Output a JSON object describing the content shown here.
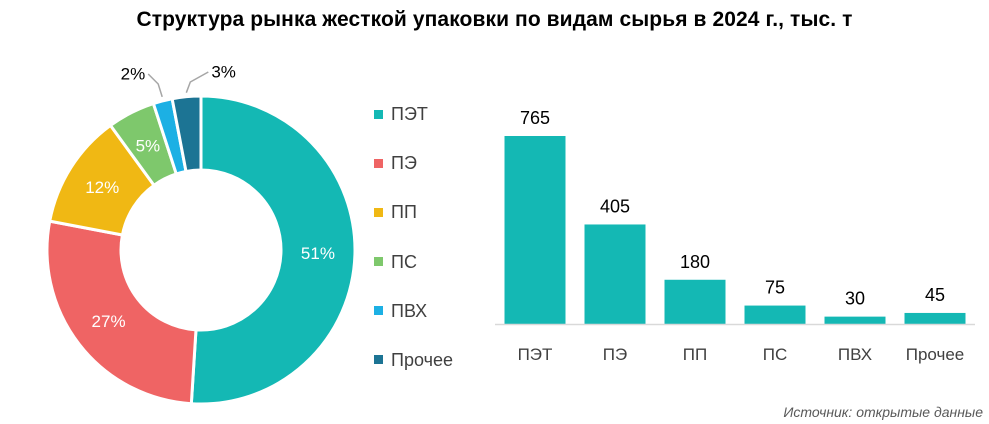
{
  "title": "Структура рынка жесткой упаковки по видам сырья в 2024 г., тыс. т",
  "source": "Источник: открытые данные",
  "colors": {
    "ПЭТ": "#14b8b4",
    "ПЭ": "#ef6464",
    "ПП": "#f0b814",
    "ПС": "#7ec86c",
    "ПВХ": "#1cb0e4",
    "Прочее": "#1c7494"
  },
  "legend": [
    "ПЭТ",
    "ПЭ",
    "ПП",
    "ПС",
    "ПВХ",
    "Прочее"
  ],
  "chart_data": [
    {
      "type": "pie",
      "donut": true,
      "categories": [
        "ПЭТ",
        "ПЭ",
        "ПП",
        "ПС",
        "ПВХ",
        "Прочее"
      ],
      "values": [
        51,
        27,
        12,
        5,
        2,
        3
      ],
      "labels": [
        "51%",
        "27%",
        "12%",
        "5%",
        "2%",
        "3%"
      ],
      "legend_position": "right"
    },
    {
      "type": "bar",
      "categories": [
        "ПЭТ",
        "ПЭ",
        "ПП",
        "ПС",
        "ПВХ",
        "Прочее"
      ],
      "values": [
        765,
        405,
        180,
        75,
        30,
        45
      ],
      "labels": [
        "765",
        "405",
        "180",
        "75",
        "30",
        "45"
      ],
      "grid": false
    }
  ]
}
